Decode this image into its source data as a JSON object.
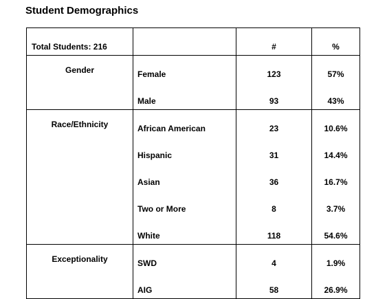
{
  "title": "Student Demographics",
  "header": {
    "total": "Total Students: 216",
    "count_label": "#",
    "percent_label": "%"
  },
  "groups": [
    {
      "name": "Gender",
      "rows": [
        {
          "category": "Female",
          "count": "123",
          "percent": "57%"
        },
        {
          "category": "Male",
          "count": "93",
          "percent": "43%"
        }
      ]
    },
    {
      "name": "Race/Ethnicity",
      "rows": [
        {
          "category": "African American",
          "count": "23",
          "percent": "10.6%"
        },
        {
          "category": "Hispanic",
          "count": "31",
          "percent": "14.4%"
        },
        {
          "category": "Asian",
          "count": "36",
          "percent": "16.7%"
        },
        {
          "category": "Two or More",
          "count": "8",
          "percent": "3.7%"
        },
        {
          "category": "White",
          "count": "118",
          "percent": "54.6%"
        }
      ]
    },
    {
      "name": "Exceptionality",
      "rows": [
        {
          "category": "SWD",
          "count": "4",
          "percent": "1.9%"
        },
        {
          "category": "AIG",
          "count": "58",
          "percent": "26.9%"
        }
      ]
    }
  ]
}
